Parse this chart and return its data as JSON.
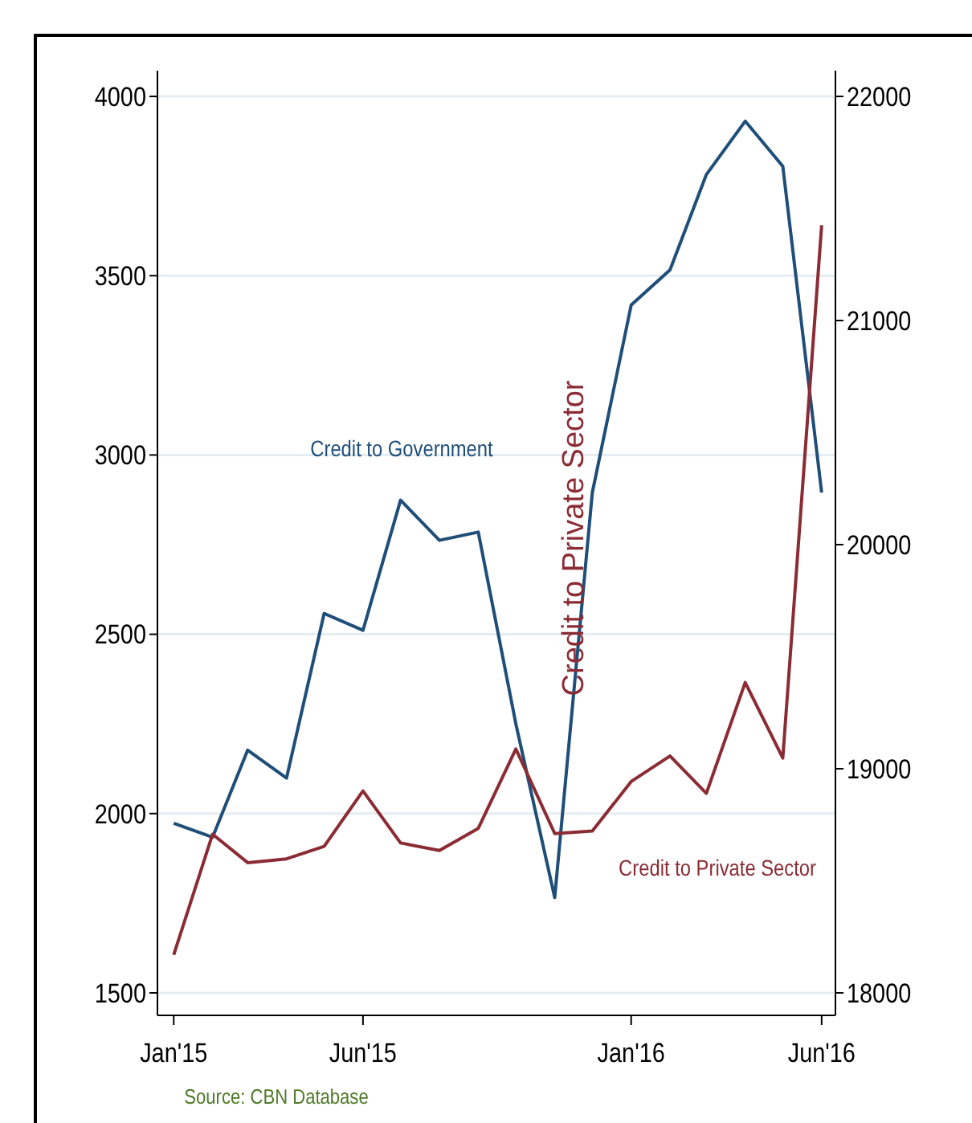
{
  "chart_data": {
    "type": "line",
    "x": [
      "2015-01",
      "2015-02",
      "2015-03",
      "2015-04",
      "2015-05",
      "2015-06",
      "2015-07",
      "2015-08",
      "2015-09",
      "2015-10",
      "2015-11",
      "2015-12",
      "2016-01",
      "2016-02",
      "2016-03",
      "2016-04",
      "2016-05",
      "2016-06"
    ],
    "series": [
      {
        "name": "Credit to Government",
        "color": "#1f4e79",
        "values": [
          1973,
          1934,
          2177,
          2099,
          2558,
          2511,
          2874,
          2762,
          2785,
          2250,
          1766,
          2895,
          3418,
          3516,
          3782,
          3931,
          3805,
          2895
        ]
      },
      {
        "name": "Credit to Private Sector",
        "color": "#8b2c35",
        "axis": "y2",
        "values": [
          18170,
          18708,
          18581,
          18598,
          18654,
          18901,
          18669,
          18635,
          18734,
          19088,
          18711,
          18722,
          18943,
          19057,
          18890,
          19385,
          19048,
          21425
        ]
      }
    ],
    "xlim": [
      "2014-12-19",
      "2016-06-12"
    ],
    "xticks": [
      {
        "value": "2015-01",
        "label": "Jan'15"
      },
      {
        "value": "2015-06",
        "label": "Jun'15"
      },
      {
        "value": "2016-01",
        "label": "Jan'16"
      },
      {
        "value": "2016-06",
        "label": "Jun'16"
      }
    ],
    "ylim": [
      1500,
      4000
    ],
    "yticks": [
      1500,
      2000,
      2500,
      3000,
      3500,
      4000
    ],
    "y2lim": [
      18000,
      22000
    ],
    "y2ticks": [
      18000,
      19000,
      20000,
      21000,
      22000
    ],
    "y2label": "Credit to Private Sector",
    "annotations": [
      "Source: CBN Database"
    ],
    "grid": "y",
    "legend": false,
    "marker": "none",
    "line_style": "solid"
  }
}
